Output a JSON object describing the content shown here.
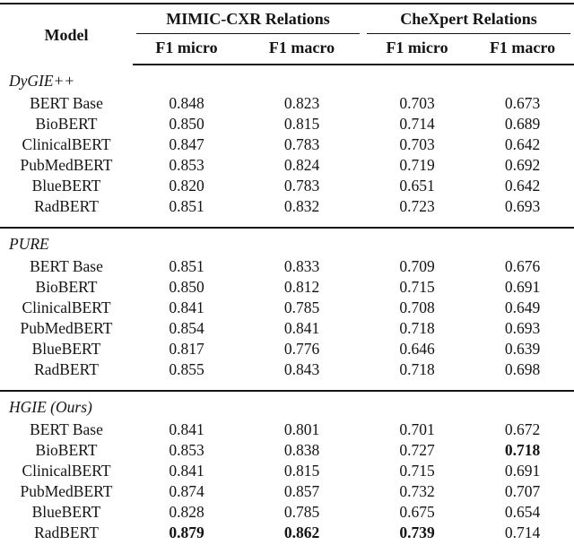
{
  "page": {
    "background": "#ffffff",
    "text_color": "#141414",
    "rule_color": "#141414"
  },
  "table": {
    "header": {
      "model_label": "Model",
      "groups": [
        {
          "label": "MIMIC-CXR Relations",
          "subcolumns": [
            "F1 micro",
            "F1 macro"
          ]
        },
        {
          "label": "CheXpert Relations",
          "subcolumns": [
            "F1 micro",
            "F1 macro"
          ]
        }
      ]
    },
    "sections": [
      {
        "label": "DyGIE++",
        "rows": [
          {
            "model": "BERT Base",
            "values": [
              "0.848",
              "0.823",
              "0.703",
              "0.673"
            ],
            "bold": [
              false,
              false,
              false,
              false
            ]
          },
          {
            "model": "BioBERT",
            "values": [
              "0.850",
              "0.815",
              "0.714",
              "0.689"
            ],
            "bold": [
              false,
              false,
              false,
              false
            ]
          },
          {
            "model": "ClinicalBERT",
            "values": [
              "0.847",
              "0.783",
              "0.703",
              "0.642"
            ],
            "bold": [
              false,
              false,
              false,
              false
            ]
          },
          {
            "model": "PubMedBERT",
            "values": [
              "0.853",
              "0.824",
              "0.719",
              "0.692"
            ],
            "bold": [
              false,
              false,
              false,
              false
            ]
          },
          {
            "model": "BlueBERT",
            "values": [
              "0.820",
              "0.783",
              "0.651",
              "0.642"
            ],
            "bold": [
              false,
              false,
              false,
              false
            ]
          },
          {
            "model": "RadBERT",
            "values": [
              "0.851",
              "0.832",
              "0.723",
              "0.693"
            ],
            "bold": [
              false,
              false,
              false,
              false
            ]
          }
        ]
      },
      {
        "label": "PURE",
        "rows": [
          {
            "model": "BERT Base",
            "values": [
              "0.851",
              "0.833",
              "0.709",
              "0.676"
            ],
            "bold": [
              false,
              false,
              false,
              false
            ]
          },
          {
            "model": "BioBERT",
            "values": [
              "0.850",
              "0.812",
              "0.715",
              "0.691"
            ],
            "bold": [
              false,
              false,
              false,
              false
            ]
          },
          {
            "model": "ClinicalBERT",
            "values": [
              "0.841",
              "0.785",
              "0.708",
              "0.649"
            ],
            "bold": [
              false,
              false,
              false,
              false
            ]
          },
          {
            "model": "PubMedBERT",
            "values": [
              "0.854",
              "0.841",
              "0.718",
              "0.693"
            ],
            "bold": [
              false,
              false,
              false,
              false
            ]
          },
          {
            "model": "BlueBERT",
            "values": [
              "0.817",
              "0.776",
              "0.646",
              "0.639"
            ],
            "bold": [
              false,
              false,
              false,
              false
            ]
          },
          {
            "model": "RadBERT",
            "values": [
              "0.855",
              "0.843",
              "0.718",
              "0.698"
            ],
            "bold": [
              false,
              false,
              false,
              false
            ]
          }
        ]
      },
      {
        "label": "HGIE (Ours)",
        "rows": [
          {
            "model": "BERT Base",
            "values": [
              "0.841",
              "0.801",
              "0.701",
              "0.672"
            ],
            "bold": [
              false,
              false,
              false,
              false
            ]
          },
          {
            "model": "BioBERT",
            "values": [
              "0.853",
              "0.838",
              "0.727",
              "0.718"
            ],
            "bold": [
              false,
              false,
              false,
              true
            ]
          },
          {
            "model": "ClinicalBERT",
            "values": [
              "0.841",
              "0.815",
              "0.715",
              "0.691"
            ],
            "bold": [
              false,
              false,
              false,
              false
            ]
          },
          {
            "model": "PubMedBERT",
            "values": [
              "0.874",
              "0.857",
              "0.732",
              "0.707"
            ],
            "bold": [
              false,
              false,
              false,
              false
            ]
          },
          {
            "model": "BlueBERT",
            "values": [
              "0.828",
              "0.785",
              "0.675",
              "0.654"
            ],
            "bold": [
              false,
              false,
              false,
              false
            ]
          },
          {
            "model": "RadBERT",
            "values": [
              "0.879",
              "0.862",
              "0.739",
              "0.714"
            ],
            "bold": [
              true,
              true,
              true,
              false
            ]
          }
        ]
      }
    ]
  }
}
